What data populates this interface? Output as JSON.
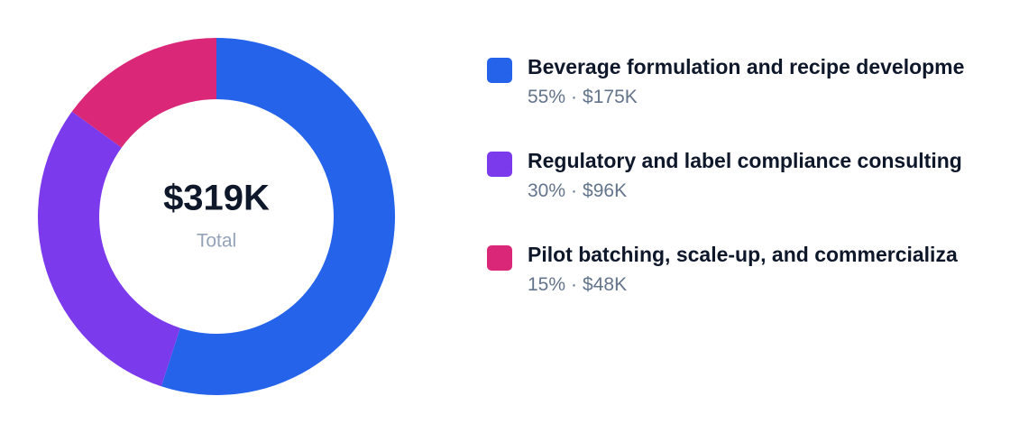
{
  "chart_data": {
    "type": "donut",
    "categories": [
      "Beverage formulation and recipe developme",
      "Regulatory and label compliance consulting",
      "Pilot batching, scale-up, and commercializa"
    ],
    "values": [
      55,
      30,
      15
    ],
    "value_labels": [
      "55%",
      "30%",
      "15%"
    ],
    "amount_labels": [
      "$175K",
      "$96K",
      "$48K"
    ],
    "separator": "·",
    "colors": [
      "#2563eb",
      "#7c3aed",
      "#db2777"
    ],
    "total": {
      "value": 319000,
      "label": "$319K"
    },
    "total_caption": "Total"
  }
}
